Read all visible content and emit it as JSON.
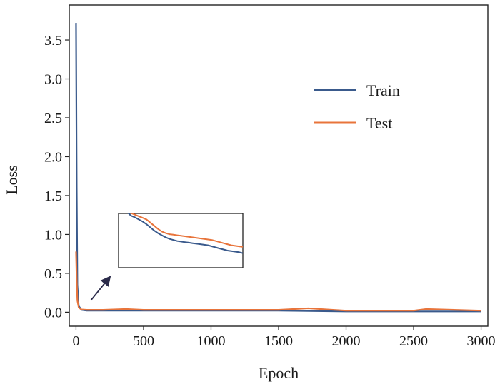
{
  "chart_data": {
    "type": "line",
    "xlabel": "Epoch",
    "ylabel": "Loss",
    "xlim": [
      -50,
      3050
    ],
    "ylim": [
      -0.18,
      3.95
    ],
    "xticks": [
      0,
      500,
      1000,
      1500,
      2000,
      2500,
      3000
    ],
    "yticks": [
      0.0,
      0.5,
      1.0,
      1.5,
      2.0,
      2.5,
      3.0,
      3.5
    ],
    "xtick_labels": [
      "0",
      "500",
      "1000",
      "1500",
      "2000",
      "2500",
      "3000"
    ],
    "ytick_labels": [
      "0.0",
      "0.5",
      "1.0",
      "1.5",
      "2.0",
      "2.5",
      "3.0",
      "3.5"
    ],
    "grid": false,
    "legend_position": "upper-right",
    "series": [
      {
        "name": "Train",
        "color": "#3a5a8c",
        "x": [
          0,
          5,
          10,
          20,
          40,
          80,
          200,
          500,
          1000,
          1500,
          2000,
          2500,
          3000
        ],
        "y": [
          3.72,
          1.6,
          0.35,
          0.08,
          0.03,
          0.02,
          0.02,
          0.02,
          0.02,
          0.02,
          0.01,
          0.01,
          0.01
        ]
      },
      {
        "name": "Test",
        "color": "#e8743b",
        "x": [
          0,
          5,
          10,
          20,
          40,
          80,
          200,
          370,
          500,
          1000,
          1500,
          1720,
          2000,
          2500,
          2590,
          3000
        ],
        "y": [
          0.78,
          0.4,
          0.15,
          0.06,
          0.035,
          0.03,
          0.03,
          0.04,
          0.03,
          0.03,
          0.03,
          0.05,
          0.02,
          0.02,
          0.04,
          0.02
        ]
      }
    ],
    "inset": {
      "train_y": [
        1.0,
        0.93,
        0.9,
        0.86,
        0.82,
        0.77,
        0.71,
        0.65,
        0.6,
        0.56,
        0.52,
        0.49,
        0.47,
        0.45,
        0.44,
        0.43,
        0.42,
        0.41,
        0.4,
        0.39,
        0.38,
        0.37,
        0.35,
        0.33,
        0.31,
        0.29,
        0.27,
        0.26,
        0.25,
        0.24,
        0.22
      ],
      "test_y": [
        1.02,
        0.98,
        0.95,
        0.92,
        0.89,
        0.86,
        0.8,
        0.74,
        0.68,
        0.63,
        0.6,
        0.58,
        0.57,
        0.56,
        0.55,
        0.54,
        0.53,
        0.52,
        0.51,
        0.5,
        0.49,
        0.48,
        0.47,
        0.45,
        0.43,
        0.41,
        0.39,
        0.37,
        0.36,
        0.35,
        0.34
      ]
    }
  }
}
